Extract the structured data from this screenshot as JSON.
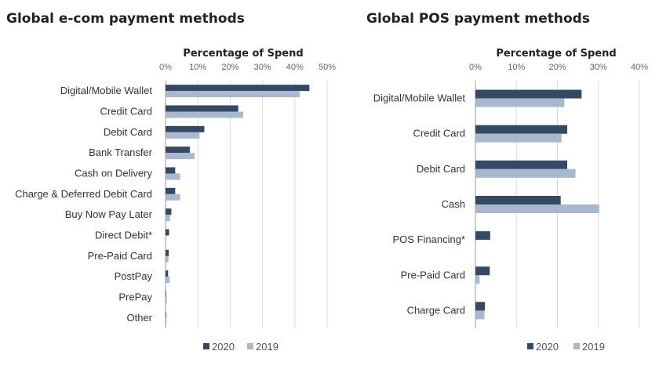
{
  "chart_data": [
    {
      "type": "bar",
      "orientation": "horizontal",
      "title": "Global e-com payment methods",
      "xlabel": "Percentage of Spend",
      "xlim": [
        0,
        50
      ],
      "xticks": [
        "0%",
        "10%",
        "20%",
        "30%",
        "40%",
        "50%"
      ],
      "categories": [
        "Digital/Mobile Wallet",
        "Credit Card",
        "Debit Card",
        "Bank Transfer",
        "Cash on Delivery",
        "Charge & Deferred Debit Card",
        "Buy Now Pay Later",
        "Direct Debit*",
        "Pre-Paid Card",
        "PostPay",
        "PrePay",
        "Other"
      ],
      "series": [
        {
          "name": "2020",
          "color": "#344a64",
          "values": [
            44.5,
            22.5,
            12,
            7.5,
            3,
            3,
            1.8,
            1.1,
            1,
            0.8,
            0.2,
            0.2
          ]
        },
        {
          "name": "2019",
          "color": "#a8b9cf",
          "values": [
            41.5,
            24,
            10.5,
            9,
            4.5,
            4.5,
            1.4,
            null,
            0.9,
            1.3,
            0.4,
            0.3
          ]
        }
      ],
      "grid": true,
      "legend": "bottom"
    },
    {
      "type": "bar",
      "orientation": "horizontal",
      "title": "Global POS payment methods",
      "xlabel": "Percentage of Spend",
      "xlim": [
        0,
        40
      ],
      "xticks": [
        "0%",
        "10%",
        "20%",
        "30%",
        "40%"
      ],
      "categories": [
        "Digital/Mobile Wallet",
        "Credit Card",
        "Debit Card",
        "Cash",
        "POS Financing*",
        "Pre-Paid Card",
        "Charge Card"
      ],
      "series": [
        {
          "name": "2020",
          "color": "#344a64",
          "values": [
            25.9,
            22.4,
            22.4,
            20.8,
            3.6,
            3.5,
            2.3
          ]
        },
        {
          "name": "2019",
          "color": "#a8b9cf",
          "values": [
            21.7,
            21,
            24.4,
            30.2,
            null,
            1,
            2.2
          ]
        }
      ],
      "grid": true,
      "legend": "bottom"
    }
  ]
}
